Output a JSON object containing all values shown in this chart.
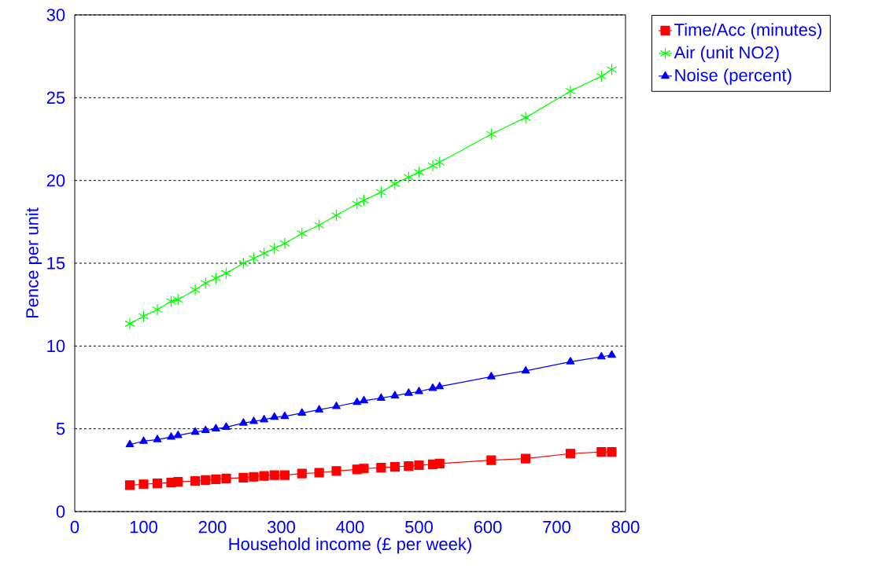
{
  "chart_data": {
    "type": "line",
    "xlabel": "Household income (£ per week)",
    "ylabel": "Pence per unit",
    "x": [
      80,
      100,
      120,
      140,
      150,
      175,
      190,
      205,
      220,
      245,
      260,
      275,
      290,
      305,
      330,
      355,
      380,
      410,
      420,
      445,
      465,
      485,
      500,
      520,
      530,
      605,
      655,
      720,
      765,
      780
    ],
    "series": [
      {
        "name": "Time/Acc (minutes)",
        "color": "#ff0000",
        "marker": "square",
        "values": [
          1.6,
          1.65,
          1.7,
          1.75,
          1.8,
          1.85,
          1.9,
          1.95,
          2.0,
          2.05,
          2.1,
          2.15,
          2.2,
          2.2,
          2.3,
          2.35,
          2.45,
          2.55,
          2.6,
          2.65,
          2.7,
          2.75,
          2.8,
          2.85,
          2.9,
          3.1,
          3.2,
          3.5,
          3.6,
          3.6
        ]
      },
      {
        "name": "Air (unit NO2)",
        "color": "#00ff00",
        "marker": "cross",
        "values": [
          11.35,
          11.8,
          12.2,
          12.7,
          12.8,
          13.4,
          13.8,
          14.1,
          14.4,
          15.0,
          15.3,
          15.6,
          15.9,
          16.2,
          16.8,
          17.3,
          17.9,
          18.6,
          18.8,
          19.3,
          19.8,
          20.2,
          20.5,
          20.9,
          21.1,
          22.8,
          23.8,
          25.4,
          26.3,
          26.7
        ]
      },
      {
        "name": "Noise (percent)",
        "color": "#0000ff",
        "marker": "triangle",
        "values": [
          4.05,
          4.25,
          4.35,
          4.5,
          4.6,
          4.8,
          4.9,
          5.0,
          5.1,
          5.35,
          5.45,
          5.55,
          5.7,
          5.75,
          5.95,
          6.15,
          6.35,
          6.6,
          6.7,
          6.85,
          7.0,
          7.15,
          7.25,
          7.45,
          7.55,
          8.15,
          8.5,
          9.05,
          9.35,
          9.45
        ]
      }
    ],
    "xlim": [
      0,
      800
    ],
    "xticks": [
      0,
      100,
      200,
      300,
      400,
      500,
      600,
      700,
      800
    ],
    "ylim": [
      0,
      30
    ],
    "yticks": [
      0,
      5,
      10,
      15,
      20,
      25,
      30
    ],
    "grid": "y",
    "legend": "right",
    "line_style": "solid"
  }
}
